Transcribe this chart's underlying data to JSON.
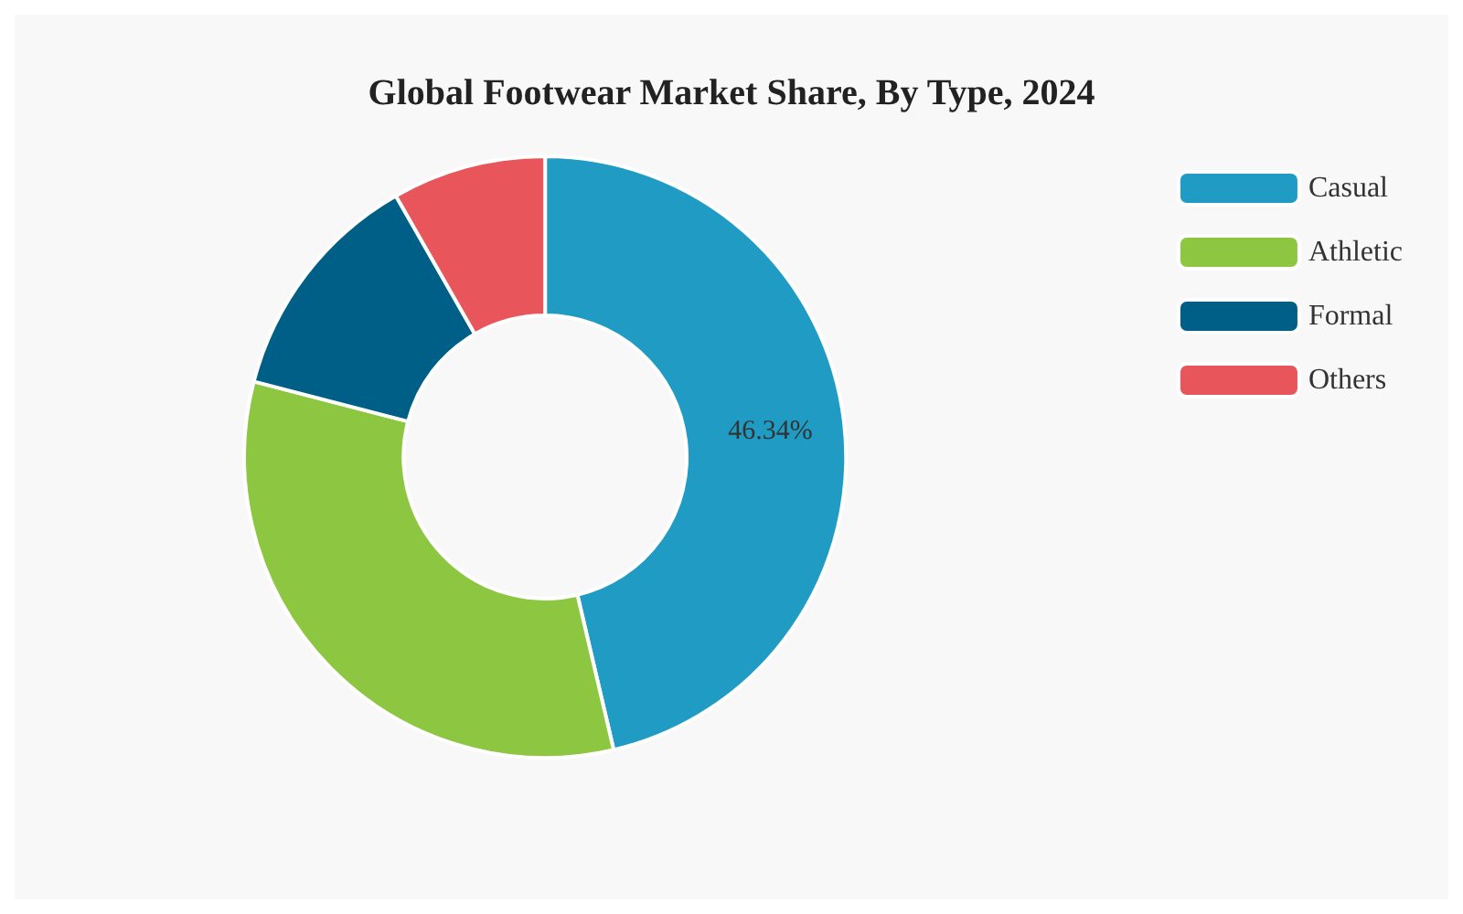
{
  "chart_data": {
    "type": "donut",
    "title": "Global Footwear Market Share, By Type, 2024",
    "categories": [
      "Casual",
      "Athletic",
      "Formal",
      "Others"
    ],
    "values": [
      46.34,
      32.7,
      12.7,
      8.26
    ],
    "colors": [
      "#1f9bc4",
      "#8dc641",
      "#005f86",
      "#e8555a"
    ],
    "value_labels": [
      "46.34%",
      null,
      null,
      null
    ],
    "legend": "right"
  }
}
